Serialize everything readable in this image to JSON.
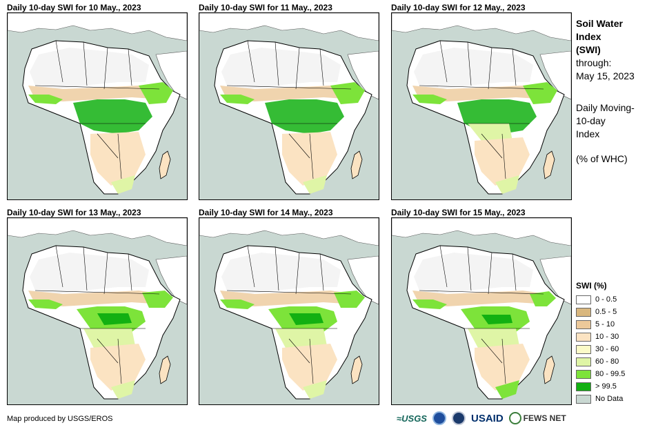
{
  "panels": [
    {
      "title": "Daily 10-day  SWI for 10 May., 2023"
    },
    {
      "title": "Daily 10-day  SWI for 11 May., 2023"
    },
    {
      "title": "Daily 10-day  SWI for 12 May., 2023"
    },
    {
      "title": "Daily 10-day  SWI for 13 May., 2023"
    },
    {
      "title": "Daily 10-day  SWI for 14 May., 2023"
    },
    {
      "title": "Daily 10-day  SWI for 15 May., 2023"
    }
  ],
  "side": {
    "title_line1": "Soil Water",
    "title_line2": "Index",
    "title_line3": "(SWI)",
    "through_label": "through:",
    "through_date": "May 15, 2023",
    "desc_line1": "Daily Moving-",
    "desc_line2": "10-day",
    "desc_line3": "Index",
    "unit": "(% of WHC)"
  },
  "legend": {
    "title": "SWI (%)",
    "items": [
      {
        "label": "0 - 0.5",
        "color": "#ffffff"
      },
      {
        "label": "0.5 - 5",
        "color": "#d9b77e"
      },
      {
        "label": "5 - 10",
        "color": "#ecc99a"
      },
      {
        "label": "10 - 30",
        "color": "#fbe3c2"
      },
      {
        "label": "30 - 60",
        "color": "#fbfbc8"
      },
      {
        "label": "60 - 80",
        "color": "#dff5a6"
      },
      {
        "label": "80 - 99.5",
        "color": "#7de33a"
      },
      {
        "label": "> 99.5",
        "color": "#12b012"
      },
      {
        "label": "No Data",
        "color": "#c9d8d2"
      }
    ]
  },
  "credit": "Map produced by USGS/EROS",
  "logos": {
    "usgs": "≈USGS",
    "usaid": "USAID",
    "fews": "FEWS NET"
  }
}
